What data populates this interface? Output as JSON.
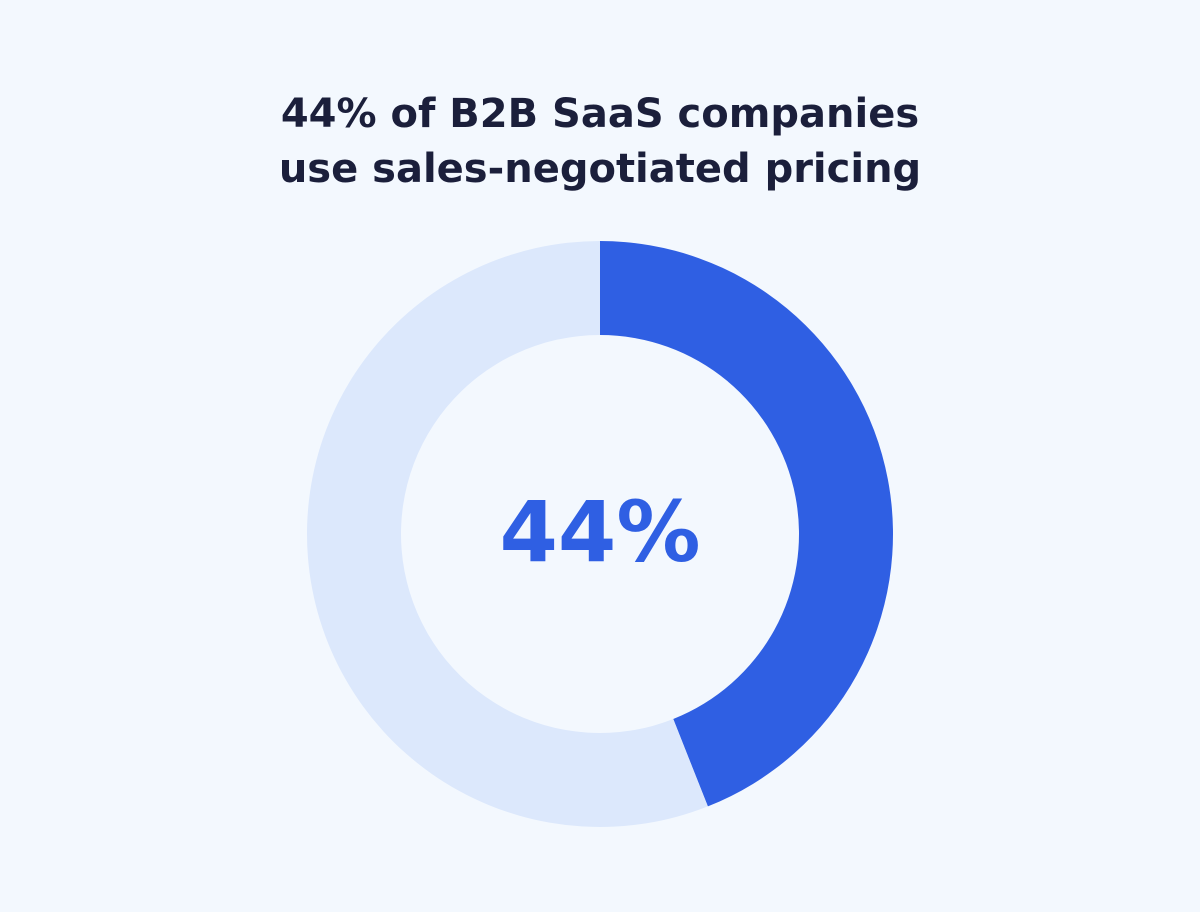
{
  "chart_data": {
    "type": "donut",
    "title": [
      "44% of B2B SaaS companies",
      "use sales-negotiated pricing"
    ],
    "values": [
      44,
      56
    ],
    "value_labels": [
      "44%",
      null
    ],
    "colors": [
      "#2f5fe3",
      "#dce8fc"
    ]
  }
}
